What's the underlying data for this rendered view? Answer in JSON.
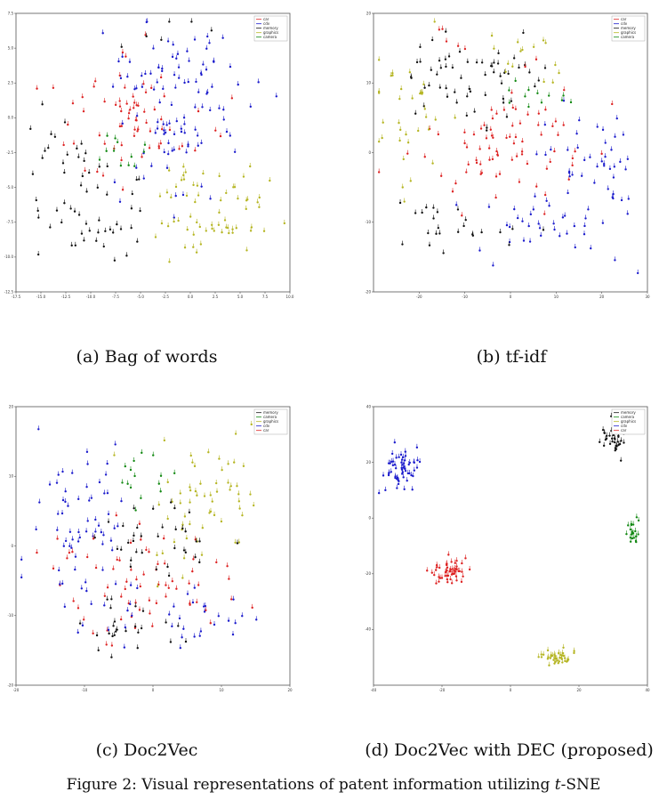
{
  "figure": {
    "label": "Figure 2:",
    "caption_before": "Visual representations of patent information utilizing ",
    "caption_italic": "t",
    "caption_after": "-SNE"
  },
  "colors": {
    "red": "#dd2222",
    "blue": "#1a1acc",
    "green": "#118811",
    "yellow": "#b5b522",
    "black": "#111111"
  },
  "chart_data": [
    {
      "type": "scatter",
      "caption": "(a) Bag of words",
      "legend": [
        "car",
        "cdv",
        "memory",
        "graphics",
        "camera"
      ],
      "legend_placement": "top-right",
      "xlim": [
        -17.5,
        10.0
      ],
      "ylim": [
        -12.5,
        7.5
      ],
      "xticks": [
        "-17.5",
        "-15.0",
        "-12.5",
        "-10.0",
        "-7.5",
        "-5.0",
        "-2.5",
        "0.0",
        "2.5",
        "5.0",
        "7.5",
        "10.0"
      ],
      "yticks": [
        "7.5",
        "5.0",
        "2.5",
        "0.0",
        "-2.5",
        "-5.0",
        "-7.5",
        "-10.0",
        "-12.5"
      ],
      "grid": false
    },
    {
      "type": "scatter",
      "caption": "(b) tf-idf",
      "legend": [
        "car",
        "cdv",
        "memory",
        "graphics",
        "camera"
      ],
      "legend_placement": "top-right",
      "xlim": [
        -30,
        30
      ],
      "ylim": [
        -20,
        20
      ],
      "xticks": [
        "-20",
        "-10",
        "0",
        "10",
        "20",
        "30"
      ],
      "yticks": [
        "20",
        "10",
        "0",
        "-10",
        "-20"
      ],
      "grid": false
    },
    {
      "type": "scatter",
      "caption": "(c) Doc2Vec",
      "legend": [
        "memory",
        "camera",
        "graphics",
        "cdv",
        "car"
      ],
      "legend_placement": "top-right",
      "xlim": [
        -20,
        20
      ],
      "ylim": [
        -20,
        20
      ],
      "xticks": [
        "-20",
        "-10",
        "0",
        "10",
        "20"
      ],
      "yticks": [
        "20",
        "10",
        "0",
        "-10",
        "-20"
      ],
      "grid": false
    },
    {
      "type": "scatter",
      "caption": "(d) Doc2Vec with DEC (proposed)",
      "legend": [
        "memory",
        "camera",
        "graphics",
        "cdv",
        "car"
      ],
      "legend_placement": "top-right",
      "xlim": [
        -40,
        40
      ],
      "ylim": [
        -60,
        40
      ],
      "xticks": [
        "-40",
        "-20",
        "0",
        "20",
        "40"
      ],
      "yticks": [
        "40",
        "20",
        "0",
        "-20",
        "-40"
      ],
      "grid": false
    }
  ]
}
